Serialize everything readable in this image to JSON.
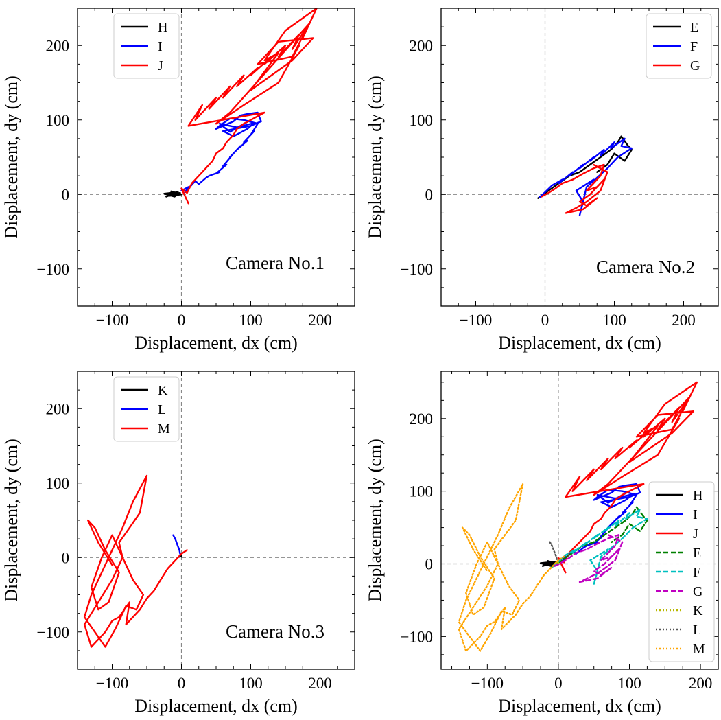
{
  "chart_data": [
    {
      "type": "line",
      "annotation": "Camera No.1",
      "xlabel": "Displacement, dx (cm)",
      "ylabel": "Displacement, dy (cm)",
      "xlim": [
        -150,
        250
      ],
      "ylim": [
        -150,
        250
      ],
      "xticks": [
        -100,
        0,
        100,
        200
      ],
      "yticks": [
        -100,
        0,
        100,
        200
      ],
      "legend_position": "top-center",
      "series": [
        {
          "name": "H",
          "color": "#000000",
          "style": "solid",
          "x": [
            -20,
            -12,
            -22,
            -8,
            -15,
            0,
            -18,
            -5,
            -25,
            -10,
            -2,
            -16
          ],
          "y": [
            -1,
            3,
            -3,
            2,
            4,
            0,
            -2,
            3,
            1,
            -3,
            2,
            -1
          ]
        },
        {
          "name": "I",
          "color": "#0000ff",
          "style": "solid",
          "x": [
            0,
            10,
            5,
            20,
            25,
            35,
            40,
            55,
            50,
            65,
            60,
            75,
            70,
            85,
            80,
            95,
            90,
            105,
            100,
            110,
            90,
            70,
            55,
            50,
            75,
            85,
            95,
            110,
            115,
            100,
            60,
            75,
            95,
            105,
            80,
            55,
            70,
            100
          ],
          "y": [
            5,
            10,
            3,
            18,
            14,
            22,
            25,
            30,
            28,
            40,
            38,
            55,
            50,
            65,
            60,
            72,
            70,
            85,
            80,
            95,
            100,
            102,
            92,
            88,
            98,
            106,
            108,
            110,
            98,
            92,
            85,
            78,
            88,
            96,
            90,
            95,
            84,
            100
          ]
        },
        {
          "name": "J",
          "color": "#ff0000",
          "style": "solid",
          "x": [
            10,
            0,
            8,
            15,
            20,
            25,
            35,
            30,
            45,
            50,
            60,
            65,
            75,
            80,
            90,
            100,
            110,
            120,
            10,
            30,
            20,
            50,
            40,
            70,
            60,
            90,
            80,
            110,
            100,
            130,
            120,
            150,
            140,
            170,
            160,
            185,
            175,
            195,
            150,
            120,
            140,
            100,
            130,
            160,
            190,
            140,
            110,
            160,
            185,
            70,
            50,
            90,
            140,
            170
          ],
          "y": [
            -12,
            8,
            2,
            15,
            20,
            25,
            35,
            30,
            45,
            55,
            62,
            70,
            80,
            88,
            95,
            100,
            105,
            110,
            92,
            120,
            100,
            130,
            115,
            145,
            130,
            160,
            145,
            170,
            160,
            185,
            175,
            200,
            185,
            215,
            195,
            230,
            210,
            250,
            220,
            180,
            190,
            140,
            160,
            180,
            210,
            205,
            175,
            185,
            230,
            110,
            95,
            120,
            150,
            200
          ]
        }
      ]
    },
    {
      "type": "line",
      "annotation": "Camera No.2",
      "xlabel": "Displacement, dx (cm)",
      "ylabel": "Displacement, dy (cm)",
      "xlim": [
        -150,
        250
      ],
      "ylim": [
        -150,
        250
      ],
      "xticks": [
        -100,
        0,
        100,
        200
      ],
      "yticks": [
        -100,
        0,
        100,
        200
      ],
      "legend_position": "top-right",
      "series": [
        {
          "name": "E",
          "color": "#000000",
          "style": "solid",
          "x": [
            -10,
            5,
            20,
            35,
            50,
            65,
            80,
            95,
            105,
            110,
            120,
            125,
            115,
            100,
            90,
            75
          ],
          "y": [
            -5,
            5,
            15,
            25,
            30,
            40,
            50,
            60,
            70,
            78,
            65,
            60,
            45,
            55,
            40,
            30
          ]
        },
        {
          "name": "F",
          "color": "#0000ff",
          "style": "solid",
          "x": [
            -8,
            0,
            10,
            25,
            20,
            40,
            35,
            55,
            50,
            70,
            65,
            85,
            80,
            100,
            95,
            115,
            110,
            125,
            105,
            90,
            60,
            50,
            55,
            45,
            70
          ],
          "y": [
            -4,
            3,
            12,
            20,
            15,
            30,
            25,
            40,
            35,
            50,
            45,
            60,
            52,
            70,
            62,
            75,
            65,
            62,
            50,
            35,
            10,
            -28,
            -10,
            5,
            20
          ]
        },
        {
          "name": "G",
          "color": "#ff0000",
          "style": "solid",
          "x": [
            -5,
            5,
            15,
            25,
            40,
            55,
            70,
            85,
            80,
            70,
            60,
            75,
            85,
            65,
            50,
            60,
            75,
            55,
            30,
            45,
            60,
            80,
            90,
            70
          ],
          "y": [
            -3,
            2,
            8,
            15,
            20,
            28,
            35,
            40,
            25,
            15,
            5,
            10,
            20,
            0,
            -10,
            -15,
            -5,
            -20,
            -25,
            -18,
            -10,
            5,
            30,
            40
          ]
        }
      ]
    },
    {
      "type": "line",
      "annotation": "Camera No.3",
      "xlabel": "Displacement, dx (cm)",
      "ylabel": "Displacement, dy (cm)",
      "xlim": [
        -150,
        250
      ],
      "ylim": [
        -150,
        250
      ],
      "xticks": [
        -100,
        0,
        100,
        200
      ],
      "yticks": [
        -100,
        0,
        100,
        200
      ],
      "legend_position": "top-center",
      "series": [
        {
          "name": "K",
          "color": "#000000",
          "style": "solid",
          "x": [
            -3,
            -1,
            0,
            -2,
            -1
          ],
          "y": [
            2,
            4,
            1,
            3,
            2
          ]
        },
        {
          "name": "L",
          "color": "#0000ff",
          "style": "solid",
          "x": [
            -12,
            -9,
            -7,
            -5,
            -3,
            -2
          ],
          "y": [
            30,
            25,
            20,
            15,
            10,
            5
          ]
        },
        {
          "name": "M",
          "color": "#ff0000",
          "style": "solid",
          "x": [
            8,
            0,
            -10,
            -20,
            -30,
            -40,
            -50,
            -60,
            -70,
            -80,
            -75,
            -90,
            -100,
            -110,
            -120,
            -130,
            -140,
            -120,
            -100,
            -85,
            -90,
            -75,
            -60,
            -50,
            -70,
            -85,
            -100,
            -115,
            -130,
            -140,
            -125,
            -110,
            -95,
            -80,
            -65,
            -55,
            -70,
            -85,
            -100,
            -115,
            -130,
            -120,
            -105,
            -90,
            -110,
            -125,
            -135,
            -120,
            -100
          ],
          "y": [
            10,
            5,
            -5,
            -15,
            -30,
            -45,
            -55,
            -70,
            -80,
            -90,
            -60,
            -80,
            -85,
            -100,
            -110,
            -120,
            -90,
            -60,
            -30,
            0,
            20,
            40,
            60,
            110,
            75,
            40,
            10,
            -20,
            -50,
            -80,
            -100,
            -120,
            -95,
            -65,
            -70,
            -50,
            -30,
            0,
            30,
            0,
            -40,
            -70,
            -60,
            -20,
            10,
            40,
            50,
            20,
            -10
          ]
        }
      ]
    },
    {
      "type": "line",
      "annotation": "",
      "xlabel": "Displacement, dx (cm)",
      "ylabel": "Displacement, dy (cm)",
      "xlim": [
        -165,
        225
      ],
      "ylim": [
        -145,
        265
      ],
      "xticks": [
        -100,
        0,
        100,
        200
      ],
      "yticks": [
        -100,
        0,
        100,
        200
      ],
      "legend_position": "center-right",
      "series": [
        {
          "name": "H",
          "color": "#000000",
          "style": "solid",
          "x": [
            -20,
            -12,
            -22,
            -8,
            -15,
            0,
            -18,
            -5,
            -25,
            -10,
            -2,
            -16
          ],
          "y": [
            -1,
            3,
            -3,
            2,
            4,
            0,
            -2,
            3,
            1,
            -3,
            2,
            -1
          ]
        },
        {
          "name": "I",
          "color": "#0000ff",
          "style": "solid",
          "x": [
            0,
            10,
            5,
            20,
            25,
            35,
            40,
            55,
            50,
            65,
            60,
            75,
            70,
            85,
            80,
            95,
            90,
            105,
            100,
            110,
            90,
            70,
            55,
            50,
            75,
            85,
            95,
            110,
            115,
            100,
            60,
            75,
            95,
            105,
            80,
            55,
            70,
            100
          ],
          "y": [
            5,
            10,
            3,
            18,
            14,
            22,
            25,
            30,
            28,
            40,
            38,
            55,
            50,
            65,
            60,
            72,
            70,
            85,
            80,
            95,
            100,
            102,
            92,
            88,
            98,
            106,
            108,
            110,
            98,
            92,
            85,
            78,
            88,
            96,
            90,
            95,
            84,
            100
          ]
        },
        {
          "name": "J",
          "color": "#ff0000",
          "style": "solid",
          "x": [
            10,
            0,
            8,
            15,
            20,
            25,
            35,
            30,
            45,
            50,
            60,
            65,
            75,
            80,
            90,
            100,
            110,
            120,
            10,
            30,
            20,
            50,
            40,
            70,
            60,
            90,
            80,
            110,
            100,
            130,
            120,
            150,
            140,
            170,
            160,
            185,
            175,
            195,
            150,
            120,
            140,
            100,
            130,
            160,
            190,
            140,
            110,
            160,
            185,
            70,
            50,
            90,
            140,
            170
          ],
          "y": [
            -12,
            8,
            2,
            15,
            20,
            25,
            35,
            30,
            45,
            55,
            62,
            70,
            80,
            88,
            95,
            100,
            105,
            110,
            92,
            120,
            100,
            130,
            115,
            145,
            130,
            160,
            145,
            170,
            160,
            185,
            175,
            200,
            185,
            215,
            195,
            230,
            210,
            250,
            220,
            180,
            190,
            140,
            160,
            180,
            210,
            205,
            175,
            185,
            230,
            110,
            95,
            120,
            150,
            200
          ]
        },
        {
          "name": "E",
          "color": "#008000",
          "style": "dashed",
          "x": [
            -10,
            5,
            20,
            35,
            50,
            65,
            80,
            95,
            105,
            110,
            120,
            125,
            115,
            100,
            90,
            75
          ],
          "y": [
            -5,
            5,
            15,
            25,
            30,
            40,
            50,
            60,
            70,
            78,
            65,
            60,
            45,
            55,
            40,
            30
          ]
        },
        {
          "name": "F",
          "color": "#00c0c0",
          "style": "dashed",
          "x": [
            -8,
            0,
            10,
            25,
            20,
            40,
            35,
            55,
            50,
            70,
            65,
            85,
            80,
            100,
            95,
            115,
            110,
            125,
            105,
            90,
            60,
            50,
            55,
            45,
            70
          ],
          "y": [
            -4,
            3,
            12,
            20,
            15,
            30,
            25,
            40,
            35,
            50,
            45,
            60,
            52,
            70,
            62,
            75,
            65,
            62,
            50,
            35,
            10,
            -28,
            -10,
            5,
            20
          ]
        },
        {
          "name": "G",
          "color": "#c000c0",
          "style": "dashed",
          "x": [
            -5,
            5,
            15,
            25,
            40,
            55,
            70,
            85,
            80,
            70,
            60,
            75,
            85,
            65,
            50,
            60,
            75,
            55,
            30,
            45,
            60,
            80,
            90,
            70
          ],
          "y": [
            -3,
            2,
            8,
            15,
            20,
            28,
            35,
            40,
            25,
            15,
            5,
            10,
            20,
            0,
            -10,
            -15,
            -5,
            -20,
            -25,
            -18,
            -10,
            5,
            30,
            40
          ]
        },
        {
          "name": "K",
          "color": "#b8b800",
          "style": "dotted",
          "x": [
            -3,
            -1,
            0,
            -2,
            -1
          ],
          "y": [
            2,
            4,
            1,
            3,
            2
          ]
        },
        {
          "name": "L",
          "color": "#555555",
          "style": "dotted",
          "x": [
            -12,
            -9,
            -7,
            -5,
            -3,
            -2
          ],
          "y": [
            30,
            25,
            20,
            15,
            10,
            5
          ]
        },
        {
          "name": "M",
          "color": "#ffa500",
          "style": "dotted",
          "x": [
            8,
            0,
            -10,
            -20,
            -30,
            -40,
            -50,
            -60,
            -70,
            -80,
            -75,
            -90,
            -100,
            -110,
            -120,
            -130,
            -140,
            -120,
            -100,
            -85,
            -90,
            -75,
            -60,
            -50,
            -70,
            -85,
            -100,
            -115,
            -130,
            -140,
            -125,
            -110,
            -95,
            -80,
            -65,
            -55,
            -70,
            -85,
            -100,
            -115,
            -130,
            -120,
            -105,
            -90,
            -110,
            -125,
            -135,
            -120,
            -100
          ],
          "y": [
            10,
            5,
            -5,
            -15,
            -30,
            -45,
            -55,
            -70,
            -80,
            -90,
            -60,
            -80,
            -85,
            -100,
            -110,
            -120,
            -90,
            -60,
            -30,
            0,
            20,
            40,
            60,
            110,
            75,
            40,
            10,
            -20,
            -50,
            -80,
            -100,
            -120,
            -95,
            -65,
            -70,
            -50,
            -30,
            0,
            30,
            0,
            -40,
            -70,
            -60,
            -20,
            10,
            40,
            50,
            20,
            -10
          ]
        }
      ]
    }
  ]
}
